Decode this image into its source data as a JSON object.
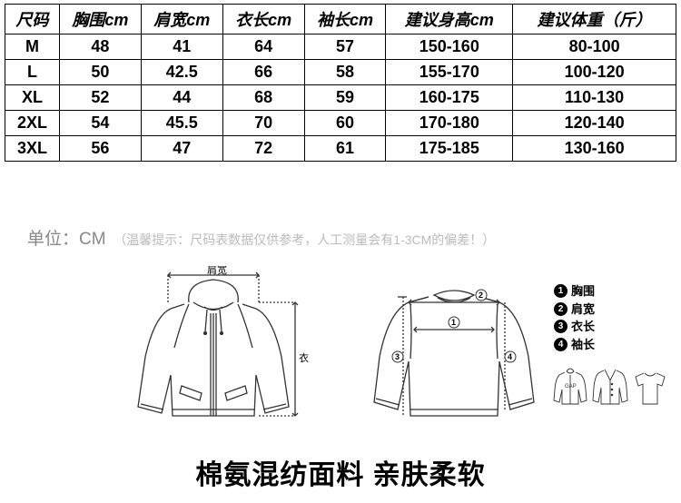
{
  "table": {
    "headers": [
      "尺码",
      "胸围cm",
      "肩宽cm",
      "衣长cm",
      "袖长cm",
      "建议身高cm",
      "建议体重（斤）"
    ],
    "rows": [
      [
        "M",
        "48",
        "41",
        "64",
        "57",
        "150-160",
        "80-100"
      ],
      [
        "L",
        "50",
        "42.5",
        "66",
        "58",
        "155-170",
        "100-120"
      ],
      [
        "XL",
        "52",
        "44",
        "68",
        "59",
        "160-175",
        "110-130"
      ],
      [
        "2XL",
        "54",
        "45.5",
        "70",
        "60",
        "170-180",
        "120-140"
      ],
      [
        "3XL",
        "56",
        "47",
        "72",
        "61",
        "175-185",
        "130-160"
      ]
    ],
    "col_widths": [
      "60px",
      "90px",
      "90px",
      "90px",
      "90px",
      "140px",
      "180px"
    ]
  },
  "unit": {
    "label": "单位：CM",
    "hint": "（温馨提示：尺码表数据仅供参考，人工测量会有1-3CM的偏差！）"
  },
  "hoodie": {
    "shoulder_label": "肩宽",
    "length_label": "衣长"
  },
  "legend": {
    "items": [
      {
        "num": "1",
        "text": "胸围"
      },
      {
        "num": "2",
        "text": "肩宽"
      },
      {
        "num": "3",
        "text": "衣长"
      },
      {
        "num": "4",
        "text": "袖长"
      }
    ]
  },
  "crewneck_markers": {
    "m1": "1",
    "m2": "2",
    "m3": "3",
    "m4": "4"
  },
  "bottom_title": "棉氨混纺面料 亲肤柔软",
  "colors": {
    "stroke": "#333333",
    "text_gray": "#999999",
    "hint_gray": "#bbbbbb"
  }
}
